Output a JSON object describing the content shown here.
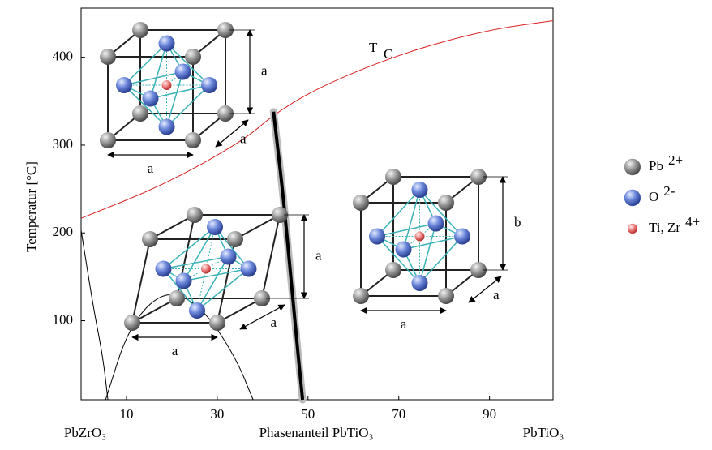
{
  "chart_data": {
    "type": "line",
    "annotation": {
      "text": "T",
      "sub": "C",
      "color": "#d62020"
    },
    "y_label": "Temperatur [°C]",
    "x_label": "Phasenanteil PbTiO₃",
    "x_left_label": "PbZrO₃",
    "x_right_label": "PbTiO₃",
    "xlim": [
      0,
      104
    ],
    "ylim": [
      10,
      456
    ],
    "xticks": [
      10,
      30,
      50,
      70,
      90
    ],
    "yticks": [
      100,
      200,
      300,
      400
    ],
    "series": [
      {
        "color": "#d62020",
        "width": 1,
        "x": [
          0,
          17.9,
          35.7,
          42.9,
          53.6,
          71.5,
          89.4,
          104
        ],
        "values": [
          216.7,
          253.7,
          304.6,
          337,
          369,
          406,
          431,
          441.7
        ]
      },
      {
        "color": "#000000",
        "width": 4,
        "x": [
          42.4,
          44.7,
          46.8,
          48.8
        ],
        "values": [
          338,
          235,
          115,
          10
        ]
      },
      {
        "color": "#000000",
        "width": 1,
        "x": [
          0,
          2.7,
          4.8,
          5.9
        ],
        "values": [
          203,
          115,
          59,
          10
        ]
      },
      {
        "color": "#000000",
        "width": 1,
        "x": [
          5.4,
          10.7,
          18.8,
          26.8,
          34,
          37.9
        ],
        "values": [
          10,
          96,
          137,
          115,
          59,
          10
        ]
      }
    ],
    "insets": [
      {
        "labels": [
          "a",
          "a",
          "a"
        ]
      },
      {
        "labels": [
          "a",
          "a",
          "a"
        ]
      },
      {
        "labels": [
          "b",
          "a",
          "a"
        ]
      }
    ],
    "legend": [
      {
        "label": "Pb",
        "charge": "2+",
        "color": "#8a8a8a"
      },
      {
        "label": "O",
        "charge": "2-",
        "color": "#5b78d0"
      },
      {
        "label": "Ti, Zr",
        "charge": "4+",
        "color": "#e86a6a"
      }
    ]
  }
}
